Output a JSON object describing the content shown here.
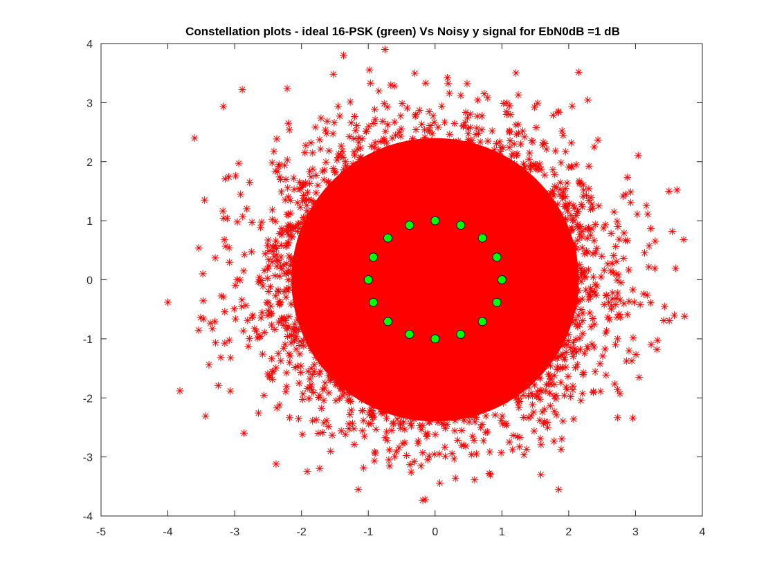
{
  "chart_data": {
    "type": "scatter",
    "title": "Constellation plots - ideal 16-PSK (green) Vs Noisy y signal for EbN0dB =1 dB",
    "xlabel": "",
    "ylabel": "",
    "xlim": [
      -5,
      4
    ],
    "ylim": [
      -4,
      4
    ],
    "xticks": [
      "-5",
      "-4",
      "-3",
      "-2",
      "-1",
      "0",
      "1",
      "2",
      "3",
      "4"
    ],
    "yticks": [
      "-4",
      "-3",
      "-2",
      "-1",
      "0",
      "1",
      "2",
      "3",
      "4"
    ],
    "grid": false,
    "series": [
      {
        "marker": "asterisk",
        "color": "#ff0000",
        "distribution": "16-PSK symbols plus gaussian noise, dense cloud centered at (0,0)",
        "approx_extent": {
          "x": [
            -4.0,
            3.7
          ],
          "y": [
            -3.75,
            3.9
          ]
        },
        "notable_outliers": [
          [
            -4.0,
            -0.38
          ],
          [
            -3.82,
            -1.88
          ],
          [
            -3.6,
            2.4
          ],
          [
            -1.37,
            3.8
          ],
          [
            -0.75,
            3.9
          ],
          [
            3.72,
            0.68
          ],
          [
            3.62,
            1.52
          ],
          [
            3.5,
            1.5
          ],
          [
            1.85,
            -3.55
          ],
          [
            -0.15,
            -3.72
          ],
          [
            -1.15,
            -3.55
          ],
          [
            -2.38,
            -3.12
          ],
          [
            3.32,
            -1.18
          ],
          [
            3.58,
            -0.6
          ],
          [
            -3.45,
            1.35
          ]
        ]
      },
      {
        "marker": "circle",
        "color": "#00ff00",
        "edge_color": "#000000",
        "points": [
          [
            1.0,
            0.0
          ],
          [
            0.924,
            0.383
          ],
          [
            0.707,
            0.707
          ],
          [
            0.383,
            0.924
          ],
          [
            0.0,
            1.0
          ],
          [
            -0.383,
            0.924
          ],
          [
            -0.707,
            0.707
          ],
          [
            -0.924,
            0.383
          ],
          [
            -1.0,
            0.0
          ],
          [
            -0.924,
            -0.383
          ],
          [
            -0.707,
            -0.707
          ],
          [
            -0.383,
            -0.924
          ],
          [
            0.0,
            -1.0
          ],
          [
            0.383,
            -0.924
          ],
          [
            0.707,
            -0.707
          ],
          [
            0.924,
            -0.383
          ]
        ]
      }
    ]
  }
}
